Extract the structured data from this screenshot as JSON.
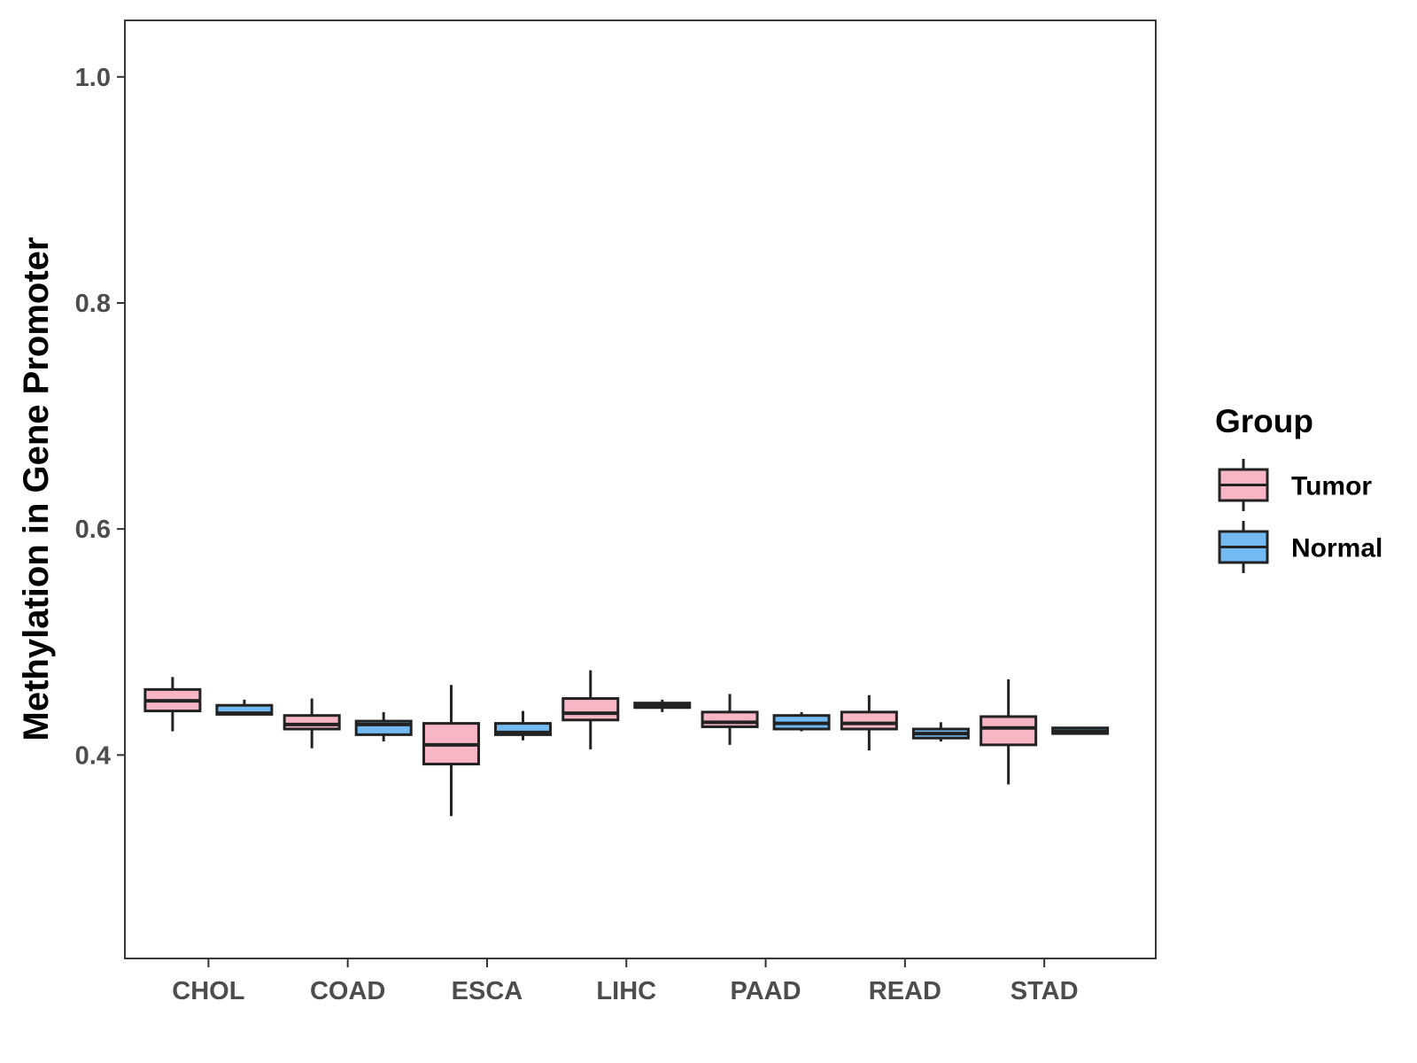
{
  "chart_data": {
    "type": "boxplot",
    "title": "",
    "xlabel": "",
    "ylabel": "Methylation in Gene Promoter",
    "ylim": [
      0.22,
      1.05
    ],
    "yticks": [
      0.4,
      0.6,
      0.8,
      1.0
    ],
    "ytick_labels": [
      "0.4",
      "0.6",
      "0.8",
      "1.0"
    ],
    "categories": [
      "CHOL",
      "COAD",
      "ESCA",
      "LIHC",
      "PAAD",
      "READ",
      "STAD"
    ],
    "legend": {
      "title": "Group",
      "placement": "right",
      "entries": [
        {
          "name": "Tumor",
          "color": "#F8B5C3"
        },
        {
          "name": "Normal",
          "color": "#73B9F2"
        }
      ]
    },
    "series": [
      {
        "name": "Tumor",
        "color": "#F8B5C3",
        "boxes": [
          {
            "category": "CHOL",
            "min": 0.421,
            "q1": 0.439,
            "median": 0.448,
            "q3": 0.458,
            "max": 0.469
          },
          {
            "category": "COAD",
            "min": 0.406,
            "q1": 0.423,
            "median": 0.427,
            "q3": 0.435,
            "max": 0.45
          },
          {
            "category": "ESCA",
            "min": 0.346,
            "q1": 0.392,
            "median": 0.409,
            "q3": 0.428,
            "max": 0.462
          },
          {
            "category": "LIHC",
            "min": 0.405,
            "q1": 0.431,
            "median": 0.437,
            "q3": 0.45,
            "max": 0.475
          },
          {
            "category": "PAAD",
            "min": 0.409,
            "q1": 0.425,
            "median": 0.429,
            "q3": 0.438,
            "max": 0.454
          },
          {
            "category": "READ",
            "min": 0.404,
            "q1": 0.423,
            "median": 0.428,
            "q3": 0.438,
            "max": 0.453
          },
          {
            "category": "STAD",
            "min": 0.374,
            "q1": 0.409,
            "median": 0.424,
            "q3": 0.434,
            "max": 0.467
          }
        ]
      },
      {
        "name": "Normal",
        "color": "#73B9F2",
        "boxes": [
          {
            "category": "CHOL",
            "min": 0.436,
            "q1": 0.436,
            "median": 0.437,
            "q3": 0.444,
            "max": 0.449
          },
          {
            "category": "COAD",
            "min": 0.412,
            "q1": 0.418,
            "median": 0.427,
            "q3": 0.43,
            "max": 0.438
          },
          {
            "category": "ESCA",
            "min": 0.413,
            "q1": 0.418,
            "median": 0.42,
            "q3": 0.428,
            "max": 0.439
          },
          {
            "category": "LIHC",
            "min": 0.438,
            "q1": 0.442,
            "median": 0.444,
            "q3": 0.446,
            "max": 0.449
          },
          {
            "category": "PAAD",
            "min": 0.421,
            "q1": 0.423,
            "median": 0.428,
            "q3": 0.435,
            "max": 0.438
          },
          {
            "category": "READ",
            "min": 0.412,
            "q1": 0.415,
            "median": 0.419,
            "q3": 0.423,
            "max": 0.429
          },
          {
            "category": "STAD",
            "min": 0.418,
            "q1": 0.419,
            "median": 0.421,
            "q3": 0.424,
            "max": 0.425
          }
        ]
      }
    ]
  }
}
